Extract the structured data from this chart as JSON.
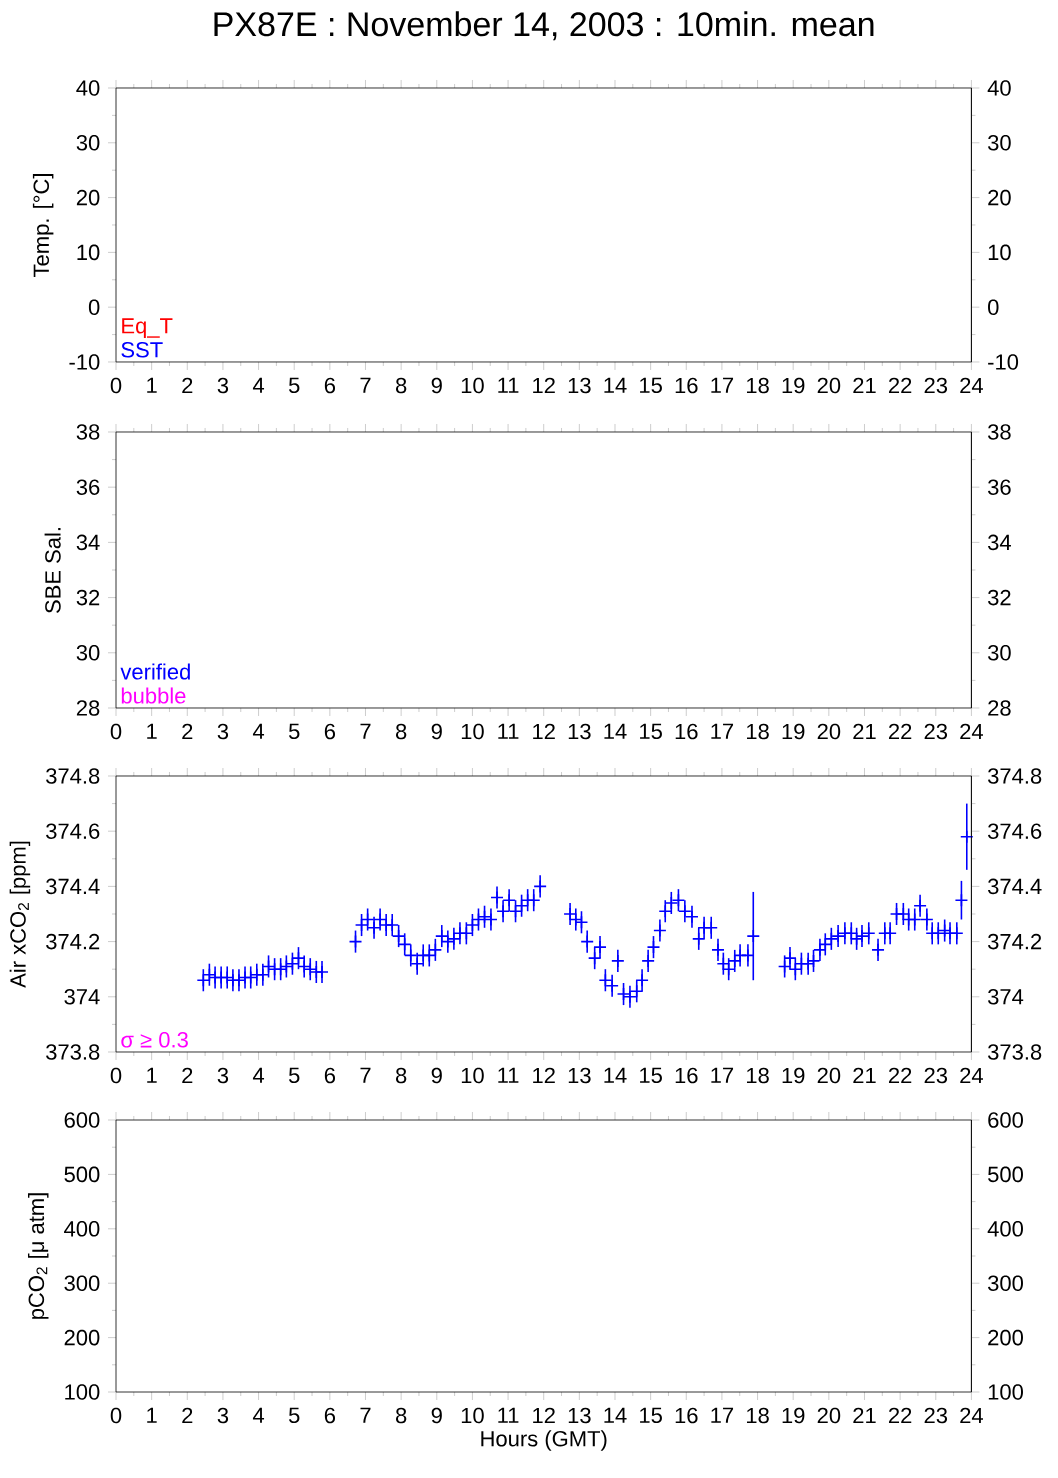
{
  "chart_data": [
    {
      "type": "line",
      "title": "PX87E : November 14, 2003 : 10min. mean",
      "ylabel": "Temp. [°C]",
      "xlim": [
        0,
        24
      ],
      "xticks": [
        0,
        1,
        2,
        3,
        4,
        5,
        6,
        7,
        8,
        9,
        10,
        11,
        12,
        13,
        14,
        15,
        16,
        17,
        18,
        19,
        20,
        21,
        22,
        23,
        24
      ],
      "ylim": [
        -10,
        40
      ],
      "yticks": [
        -10,
        0,
        10,
        20,
        30,
        40
      ],
      "y2lim": [
        -10,
        40
      ],
      "y2ticks": [
        -10,
        0,
        10,
        20,
        30,
        40
      ],
      "series": [
        {
          "name": "Eq_T",
          "color": "#ff0000",
          "x": [
            null
          ],
          "values": [
            null
          ]
        },
        {
          "name": "SST",
          "color": "#0000ff",
          "x": [
            null
          ],
          "values": [
            null
          ]
        }
      ]
    },
    {
      "type": "line",
      "ylabel": "SBE Sal.",
      "xlim": [
        0,
        24
      ],
      "xticks": [
        0,
        1,
        2,
        3,
        4,
        5,
        6,
        7,
        8,
        9,
        10,
        11,
        12,
        13,
        14,
        15,
        16,
        17,
        18,
        19,
        20,
        21,
        22,
        23,
        24
      ],
      "ylim": [
        28,
        38
      ],
      "yticks": [
        28,
        30,
        32,
        34,
        36,
        38
      ],
      "y2lim": [
        28,
        38
      ],
      "y2ticks": [
        28,
        30,
        32,
        34,
        36,
        38
      ],
      "series": [
        {
          "name": "verified",
          "color": "#0000ff",
          "x": [
            null
          ],
          "values": [
            null
          ]
        },
        {
          "name": "bubble",
          "color": "#ff00ff",
          "x": [
            null
          ],
          "values": [
            null
          ]
        }
      ]
    },
    {
      "type": "scatter",
      "ylabel": "Air xCO$_{2}$ [ppm]",
      "xlim": [
        0,
        24
      ],
      "xticks": [
        0,
        1,
        2,
        3,
        4,
        5,
        6,
        7,
        8,
        9,
        10,
        11,
        12,
        13,
        14,
        15,
        16,
        17,
        18,
        19,
        20,
        21,
        22,
        23,
        24
      ],
      "ylim": [
        373.8,
        374.8
      ],
      "yticks": [
        373.8,
        374,
        374.2,
        374.4,
        374.6,
        374.8
      ],
      "y2lim": [
        373.8,
        374.8
      ],
      "y2ticks": [
        373.8,
        374,
        374.2,
        374.4,
        374.6,
        374.8
      ],
      "marker": "cross",
      "series": [
        {
          "color": "#0000ff",
          "x": [
            2.45,
            2.62,
            2.78,
            2.95,
            3.12,
            3.28,
            3.45,
            3.62,
            3.78,
            3.95,
            4.12,
            4.28,
            4.45,
            4.62,
            4.78,
            4.95,
            5.12,
            5.28,
            5.45,
            5.62,
            5.78,
            6.72,
            6.89,
            7.06,
            7.24,
            7.41,
            7.58,
            7.75,
            7.93,
            8.1,
            8.27,
            8.45,
            8.62,
            8.79,
            8.96,
            9.14,
            9.31,
            9.48,
            9.65,
            9.83,
            10.0,
            10.17,
            10.34,
            10.52,
            10.69,
            10.86,
            11.03,
            11.21,
            11.38,
            11.55,
            11.72,
            11.9,
            12.74,
            12.9,
            13.06,
            13.22,
            13.43,
            13.58,
            13.73,
            13.92,
            14.08,
            14.24,
            14.42,
            14.61,
            14.76,
            14.93,
            15.08,
            15.26,
            15.41,
            15.58,
            15.78,
            15.96,
            16.16,
            16.35,
            16.5,
            16.7,
            16.89,
            17.04,
            17.19,
            17.36,
            17.51,
            17.73,
            17.88,
            18.76,
            18.91,
            19.06,
            19.23,
            19.42,
            19.57,
            19.75,
            19.9,
            20.07,
            20.26,
            20.45,
            20.63,
            20.78,
            20.93,
            21.12,
            21.38,
            21.57,
            21.72,
            21.9,
            22.09,
            22.24,
            22.41,
            22.56,
            22.75,
            22.9,
            23.07,
            23.25,
            23.4,
            23.59,
            23.72,
            23.87
          ],
          "values": [
            374.06,
            374.08,
            374.07,
            374.07,
            374.07,
            374.06,
            374.06,
            374.07,
            374.07,
            374.08,
            374.08,
            374.11,
            374.1,
            374.1,
            374.11,
            374.12,
            374.14,
            374.11,
            374.1,
            374.09,
            374.09,
            374.2,
            374.26,
            374.28,
            374.25,
            374.28,
            374.26,
            374.26,
            374.22,
            374.19,
            374.15,
            374.12,
            374.15,
            374.15,
            374.17,
            374.22,
            374.2,
            374.21,
            374.23,
            374.23,
            374.26,
            374.28,
            374.29,
            374.28,
            374.36,
            374.31,
            374.35,
            374.31,
            374.33,
            374.35,
            374.35,
            374.4,
            374.3,
            374.28,
            374.27,
            374.2,
            374.14,
            374.18,
            374.06,
            374.04,
            374.13,
            374.01,
            374.0,
            374.02,
            374.06,
            374.13,
            374.18,
            374.24,
            374.31,
            374.34,
            374.35,
            374.31,
            374.29,
            374.21,
            374.25,
            374.25,
            374.17,
            374.12,
            374.1,
            374.13,
            374.15,
            374.15,
            374.22,
            374.11,
            374.14,
            374.1,
            374.12,
            374.12,
            374.13,
            374.17,
            374.19,
            374.21,
            374.22,
            374.23,
            374.23,
            374.21,
            374.22,
            374.23,
            374.17,
            374.23,
            374.23,
            374.3,
            374.3,
            374.28,
            374.28,
            374.33,
            374.28,
            374.23,
            374.23,
            374.24,
            374.23,
            374.23,
            374.35,
            374.58
          ],
          "errors": [
            0.04,
            0.04,
            0.04,
            0.04,
            0.04,
            0.04,
            0.04,
            0.04,
            0.04,
            0.04,
            0.04,
            0.04,
            0.04,
            0.04,
            0.04,
            0.04,
            0.04,
            0.04,
            0.04,
            0.04,
            0.04,
            0.04,
            0.04,
            0.04,
            0.04,
            0.04,
            0.04,
            0.04,
            0.04,
            0.04,
            0.04,
            0.04,
            0.04,
            0.04,
            0.04,
            0.04,
            0.04,
            0.04,
            0.04,
            0.04,
            0.04,
            0.04,
            0.04,
            0.04,
            0.04,
            0.04,
            0.04,
            0.04,
            0.04,
            0.04,
            0.04,
            0.04,
            0.04,
            0.04,
            0.04,
            0.04,
            0.04,
            0.04,
            0.04,
            0.04,
            0.04,
            0.04,
            0.04,
            0.04,
            0.04,
            0.04,
            0.04,
            0.04,
            0.04,
            0.04,
            0.04,
            0.04,
            0.04,
            0.04,
            0.04,
            0.04,
            0.04,
            0.04,
            0.04,
            0.04,
            0.04,
            0.04,
            0.16,
            0.04,
            0.04,
            0.04,
            0.04,
            0.04,
            0.04,
            0.04,
            0.04,
            0.04,
            0.04,
            0.04,
            0.04,
            0.04,
            0.04,
            0.04,
            0.04,
            0.04,
            0.04,
            0.04,
            0.04,
            0.04,
            0.04,
            0.04,
            0.04,
            0.04,
            0.04,
            0.04,
            0.04,
            0.04,
            0.07,
            0.12
          ]
        },
        {
          "name": "σ ≥ 0.3",
          "color": "#ff00ff"
        }
      ]
    },
    {
      "type": "line",
      "ylabel": "pCO$_{2}$ [μ atm]",
      "xlabel": "Hours (GMT)",
      "xlim": [
        0,
        24
      ],
      "xticks": [
        0,
        1,
        2,
        3,
        4,
        5,
        6,
        7,
        8,
        9,
        10,
        11,
        12,
        13,
        14,
        15,
        16,
        17,
        18,
        19,
        20,
        21,
        22,
        23,
        24
      ],
      "ylim": [
        100,
        600
      ],
      "yticks": [
        100,
        200,
        300,
        400,
        500,
        600
      ],
      "y2lim": [
        100,
        600
      ],
      "y2ticks": [
        100,
        200,
        300,
        400,
        500,
        600
      ]
    }
  ]
}
